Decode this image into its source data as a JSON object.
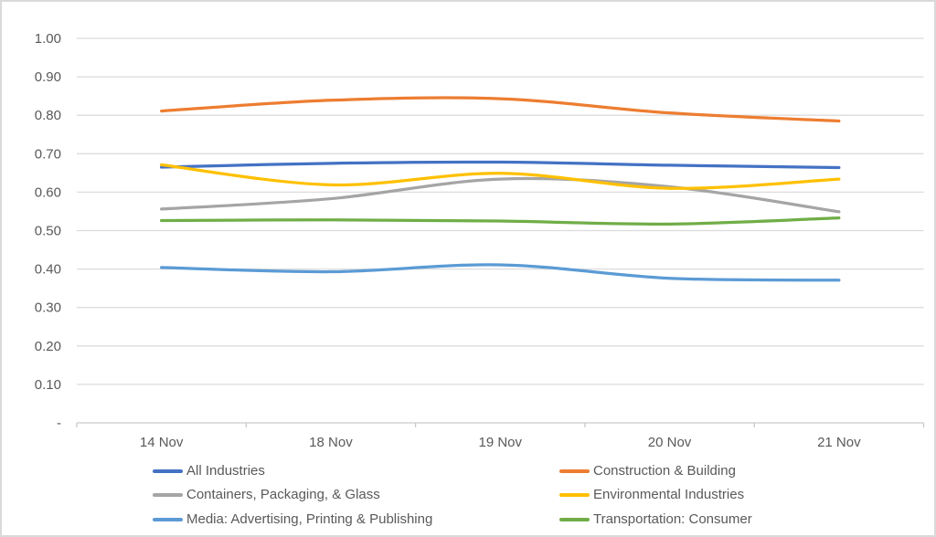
{
  "chart_data": {
    "type": "line",
    "title": "",
    "xlabel": "",
    "ylabel": "",
    "categories": [
      "14 Nov",
      "18 Nov",
      "19 Nov",
      "20 Nov",
      "21 Nov"
    ],
    "series": [
      {
        "name": "All Industries",
        "color": "#4472C4",
        "values": [
          0.665,
          0.675,
          0.678,
          0.67,
          0.664
        ]
      },
      {
        "name": "Construction & Building",
        "color": "#ED7D31",
        "values": [
          0.811,
          0.839,
          0.843,
          0.806,
          0.785
        ]
      },
      {
        "name": "Containers, Packaging, & Glass",
        "color": "#A5A5A5",
        "values": [
          0.556,
          0.583,
          0.634,
          0.614,
          0.549
        ]
      },
      {
        "name": "Environmental Industries",
        "color": "#FFC000",
        "values": [
          0.671,
          0.619,
          0.649,
          0.61,
          0.634
        ]
      },
      {
        "name": "Media: Advertising, Printing & Publishing",
        "color": "#5B9BD5",
        "values": [
          0.404,
          0.393,
          0.411,
          0.376,
          0.371
        ]
      },
      {
        "name": "Transportation: Consumer",
        "color": "#70AD47",
        "values": [
          0.526,
          0.528,
          0.525,
          0.517,
          0.533
        ]
      }
    ],
    "y_axis": {
      "min": 0,
      "max": 1.0,
      "ticks": [
        {
          "value": 1.0,
          "label": "1.00"
        },
        {
          "value": 0.9,
          "label": "0.90"
        },
        {
          "value": 0.8,
          "label": "0.80"
        },
        {
          "value": 0.7,
          "label": "0.70"
        },
        {
          "value": 0.6,
          "label": "0.60"
        },
        {
          "value": 0.5,
          "label": "0.50"
        },
        {
          "value": 0.4,
          "label": "0.40"
        },
        {
          "value": 0.3,
          "label": "0.30"
        },
        {
          "value": 0.2,
          "label": "0.20"
        },
        {
          "value": 0.1,
          "label": "0.10"
        },
        {
          "value": 0.0,
          "label": "-"
        }
      ]
    },
    "ylim": [
      0,
      1.0
    ],
    "grid": true,
    "line_smoothing": true,
    "legend_position": "bottom-two-columns"
  },
  "colors": {
    "background": "#FFFFFF",
    "gridline": "#DCDCDC",
    "axis": "#C9C9C9",
    "text": "#595959",
    "border": "#DADADA"
  }
}
